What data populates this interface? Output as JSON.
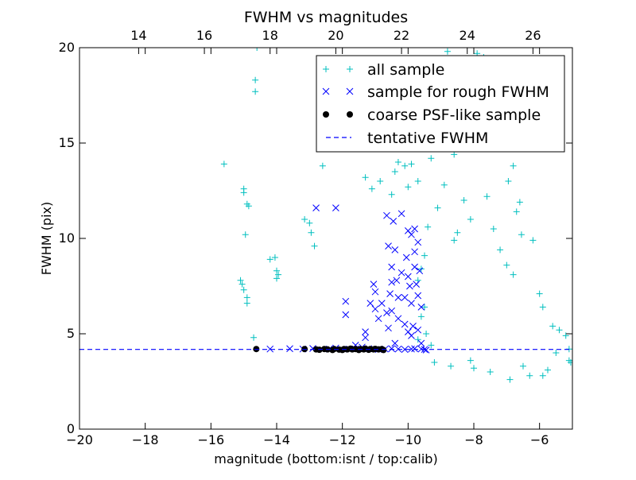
{
  "chart_data": {
    "type": "scatter",
    "title": "FWHM vs magnitudes",
    "xlabel": "magnitude (bottom:isnt / top:calib)",
    "ylabel": "FWHM (pix)",
    "xlim": [
      -20,
      -5
    ],
    "ylim": [
      0,
      20
    ],
    "x_ticks": [
      -20,
      -18,
      -16,
      -14,
      -12,
      -10,
      -8,
      -6
    ],
    "x_tick_labels": [
      "−20",
      "−18",
      "−16",
      "−14",
      "−12",
      "−10",
      "−8",
      "−6"
    ],
    "y_ticks": [
      0,
      5,
      10,
      15,
      20
    ],
    "y_tick_labels": [
      "0",
      "5",
      "10",
      "15",
      "20"
    ],
    "top_axis": {
      "ticks": [
        14,
        16,
        18,
        20,
        22,
        24,
        26
      ],
      "tick_labels": [
        "14",
        "16",
        "18",
        "20",
        "22",
        "24",
        "26"
      ],
      "offset": 32.2
    },
    "grid": false,
    "legend_position": "top-right",
    "series": [
      {
        "name": "all sample",
        "marker": "+",
        "color": "#00bfbf",
        "points": [
          [
            -15.6,
            13.9
          ],
          [
            -15.0,
            12.6
          ],
          [
            -15.0,
            12.4
          ],
          [
            -14.9,
            11.8
          ],
          [
            -14.85,
            11.7
          ],
          [
            -14.95,
            10.2
          ],
          [
            -15.1,
            7.8
          ],
          [
            -15.05,
            7.6
          ],
          [
            -15.0,
            7.3
          ],
          [
            -14.9,
            6.9
          ],
          [
            -14.9,
            6.6
          ],
          [
            -14.65,
            18.3
          ],
          [
            -14.65,
            17.7
          ],
          [
            -14.6,
            20.0
          ],
          [
            -14.2,
            8.9
          ],
          [
            -14.05,
            9.0
          ],
          [
            -14.0,
            8.3
          ],
          [
            -13.95,
            8.1
          ],
          [
            -14.0,
            7.9
          ],
          [
            -14.7,
            4.8
          ],
          [
            -13.15,
            11.0
          ],
          [
            -13.0,
            10.8
          ],
          [
            -12.95,
            10.3
          ],
          [
            -12.85,
            9.6
          ],
          [
            -12.6,
            13.8
          ],
          [
            -11.3,
            13.2
          ],
          [
            -11.1,
            12.6
          ],
          [
            -10.85,
            13.0
          ],
          [
            -10.5,
            12.3
          ],
          [
            -10.3,
            14.0
          ],
          [
            -10.4,
            13.5
          ],
          [
            -10.1,
            13.8
          ],
          [
            -10.0,
            12.7
          ],
          [
            -9.9,
            13.9
          ],
          [
            -9.7,
            13.0
          ],
          [
            -8.8,
            19.8
          ],
          [
            -8.2,
            18.9
          ],
          [
            -7.9,
            19.7
          ],
          [
            -7.7,
            19.5
          ],
          [
            -7.5,
            18.6
          ],
          [
            -7.3,
            17.9
          ],
          [
            -7.6,
            17.2
          ],
          [
            -7.8,
            16.5
          ],
          [
            -8.0,
            15.6
          ],
          [
            -8.4,
            15.2
          ],
          [
            -9.0,
            14.8
          ],
          [
            -9.3,
            14.2
          ],
          [
            -8.6,
            14.4
          ],
          [
            -7.2,
            16.0
          ],
          [
            -7.0,
            14.9
          ],
          [
            -6.8,
            13.8
          ],
          [
            -6.95,
            13.0
          ],
          [
            -6.7,
            11.4
          ],
          [
            -6.6,
            11.9
          ],
          [
            -6.55,
            10.2
          ],
          [
            -6.2,
            9.9
          ],
          [
            -6.0,
            7.1
          ],
          [
            -5.9,
            6.4
          ],
          [
            -5.6,
            5.4
          ],
          [
            -5.4,
            5.2
          ],
          [
            -5.2,
            4.9
          ],
          [
            -5.1,
            3.6
          ],
          [
            -5.1,
            4.2
          ],
          [
            -5.05,
            3.5
          ],
          [
            -5.5,
            4.0
          ],
          [
            -5.75,
            3.1
          ],
          [
            -5.9,
            2.8
          ],
          [
            -6.3,
            2.8
          ],
          [
            -6.5,
            3.3
          ],
          [
            -6.9,
            2.6
          ],
          [
            -7.5,
            3.0
          ],
          [
            -8.0,
            3.2
          ],
          [
            -8.1,
            3.6
          ],
          [
            -8.7,
            3.3
          ],
          [
            -9.2,
            3.5
          ],
          [
            -8.6,
            9.9
          ],
          [
            -9.4,
            10.6
          ],
          [
            -9.5,
            9.1
          ],
          [
            -9.6,
            8.4
          ],
          [
            -9.7,
            7.8
          ],
          [
            -9.5,
            6.4
          ],
          [
            -9.6,
            5.9
          ],
          [
            -9.45,
            5.0
          ],
          [
            -9.7,
            4.7
          ],
          [
            -9.3,
            4.4
          ],
          [
            -7.4,
            10.5
          ],
          [
            -7.2,
            9.4
          ],
          [
            -7.0,
            8.6
          ],
          [
            -6.8,
            8.1
          ],
          [
            -7.6,
            12.2
          ],
          [
            -8.3,
            12.0
          ],
          [
            -8.1,
            11.0
          ],
          [
            -8.5,
            10.3
          ],
          [
            -8.9,
            12.8
          ],
          [
            -9.1,
            11.6
          ]
        ]
      },
      {
        "name": "sample for rough FWHM",
        "marker": "x",
        "color": "#0000ff",
        "points": [
          [
            -12.8,
            11.6
          ],
          [
            -12.2,
            11.6
          ],
          [
            -10.65,
            11.2
          ],
          [
            -10.45,
            10.9
          ],
          [
            -10.2,
            11.3
          ],
          [
            -10.0,
            10.4
          ],
          [
            -9.9,
            10.2
          ],
          [
            -9.8,
            10.5
          ],
          [
            -10.6,
            9.6
          ],
          [
            -10.4,
            9.4
          ],
          [
            -10.05,
            9.0
          ],
          [
            -9.8,
            9.3
          ],
          [
            -9.7,
            9.8
          ],
          [
            -10.5,
            8.5
          ],
          [
            -10.2,
            8.2
          ],
          [
            -10.0,
            8.0
          ],
          [
            -9.8,
            8.5
          ],
          [
            -9.65,
            8.3
          ],
          [
            -10.5,
            7.7
          ],
          [
            -10.35,
            7.8
          ],
          [
            -9.95,
            7.5
          ],
          [
            -9.75,
            7.6
          ],
          [
            -11.05,
            7.6
          ],
          [
            -11.0,
            7.2
          ],
          [
            -10.55,
            7.1
          ],
          [
            -10.3,
            6.9
          ],
          [
            -10.1,
            6.9
          ],
          [
            -9.9,
            6.6
          ],
          [
            -9.7,
            7.0
          ],
          [
            -11.0,
            6.3
          ],
          [
            -10.65,
            6.1
          ],
          [
            -10.5,
            6.2
          ],
          [
            -9.6,
            6.4
          ],
          [
            -11.9,
            6.7
          ],
          [
            -11.15,
            6.6
          ],
          [
            -10.9,
            5.8
          ],
          [
            -10.3,
            5.8
          ],
          [
            -10.1,
            5.5
          ],
          [
            -9.85,
            5.4
          ],
          [
            -11.9,
            6.0
          ],
          [
            -11.3,
            5.1
          ],
          [
            -10.6,
            5.3
          ],
          [
            -10.0,
            5.1
          ],
          [
            -9.7,
            5.2
          ],
          [
            -9.9,
            4.9
          ],
          [
            -10.8,
            6.6
          ],
          [
            -11.3,
            4.8
          ],
          [
            -10.4,
            4.5
          ],
          [
            -9.6,
            4.5
          ],
          [
            -11.6,
            4.4
          ],
          [
            -14.2,
            4.2
          ],
          [
            -13.6,
            4.22
          ],
          [
            -13.2,
            4.2
          ],
          [
            -12.9,
            4.23
          ],
          [
            -12.4,
            4.2
          ],
          [
            -12.2,
            4.25
          ],
          [
            -11.8,
            4.2
          ],
          [
            -11.6,
            4.2
          ],
          [
            -11.2,
            4.22
          ],
          [
            -10.9,
            4.18
          ],
          [
            -10.7,
            4.2
          ],
          [
            -10.5,
            4.22
          ],
          [
            -10.3,
            4.2
          ],
          [
            -10.1,
            4.18
          ],
          [
            -9.9,
            4.2
          ],
          [
            -9.8,
            4.22
          ],
          [
            -9.6,
            4.2
          ],
          [
            -9.5,
            4.18
          ],
          [
            -9.45,
            4.15
          ],
          [
            -11.4,
            4.3
          ]
        ]
      },
      {
        "name": "coarse PSF-like sample",
        "marker": "o",
        "color": "#000000",
        "points": [
          [
            -14.62,
            4.2
          ],
          [
            -13.15,
            4.2
          ],
          [
            -12.8,
            4.18
          ],
          [
            -12.7,
            4.16
          ],
          [
            -12.55,
            4.2
          ],
          [
            -12.45,
            4.18
          ],
          [
            -12.3,
            4.15
          ],
          [
            -12.25,
            4.2
          ],
          [
            -12.1,
            4.17
          ],
          [
            -12.0,
            4.15
          ],
          [
            -11.95,
            4.2
          ],
          [
            -11.85,
            4.18
          ],
          [
            -11.75,
            4.22
          ],
          [
            -11.7,
            4.18
          ],
          [
            -11.6,
            4.2
          ],
          [
            -11.5,
            4.15
          ],
          [
            -11.45,
            4.2
          ],
          [
            -11.35,
            4.18
          ],
          [
            -11.3,
            4.22
          ],
          [
            -11.2,
            4.16
          ],
          [
            -11.15,
            4.2
          ],
          [
            -11.05,
            4.18
          ],
          [
            -11.0,
            4.21
          ],
          [
            -10.9,
            4.18
          ],
          [
            -10.8,
            4.2
          ],
          [
            -10.75,
            4.15
          ]
        ]
      },
      {
        "name": "tentative FWHM",
        "style": "dashed-line",
        "color": "#0000ff",
        "value": 4.18
      }
    ]
  }
}
